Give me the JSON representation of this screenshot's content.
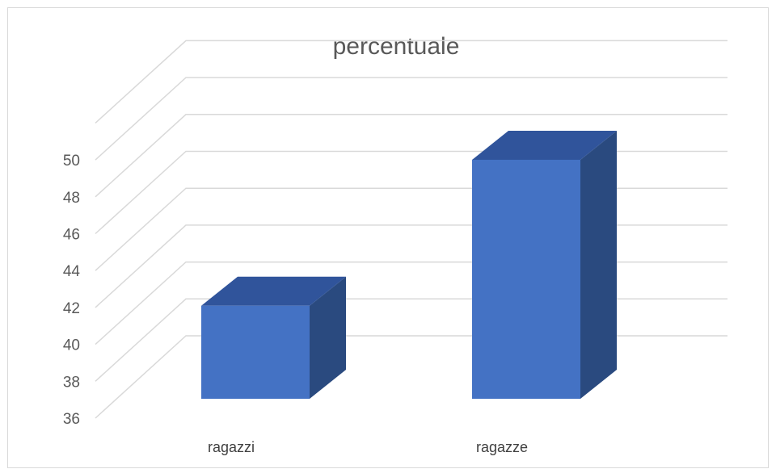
{
  "chart_data": {
    "type": "bar",
    "style": "3d-column",
    "title": "percentuale",
    "categories": [
      "ragazzi",
      "ragazze"
    ],
    "values": [
      41.8,
      49.8
    ],
    "ylim": [
      36,
      50
    ],
    "yticks": [
      "36",
      "38",
      "40",
      "42",
      "44",
      "46",
      "48",
      "50"
    ],
    "xlabel": "",
    "ylabel": "",
    "grid": true,
    "legend": "none",
    "colors": {
      "bar_front": "#4472c4",
      "bar_side": "#2a4a7f",
      "bar_top": "#30549b",
      "grid": "#d9d9d9",
      "text": "#595959"
    }
  }
}
